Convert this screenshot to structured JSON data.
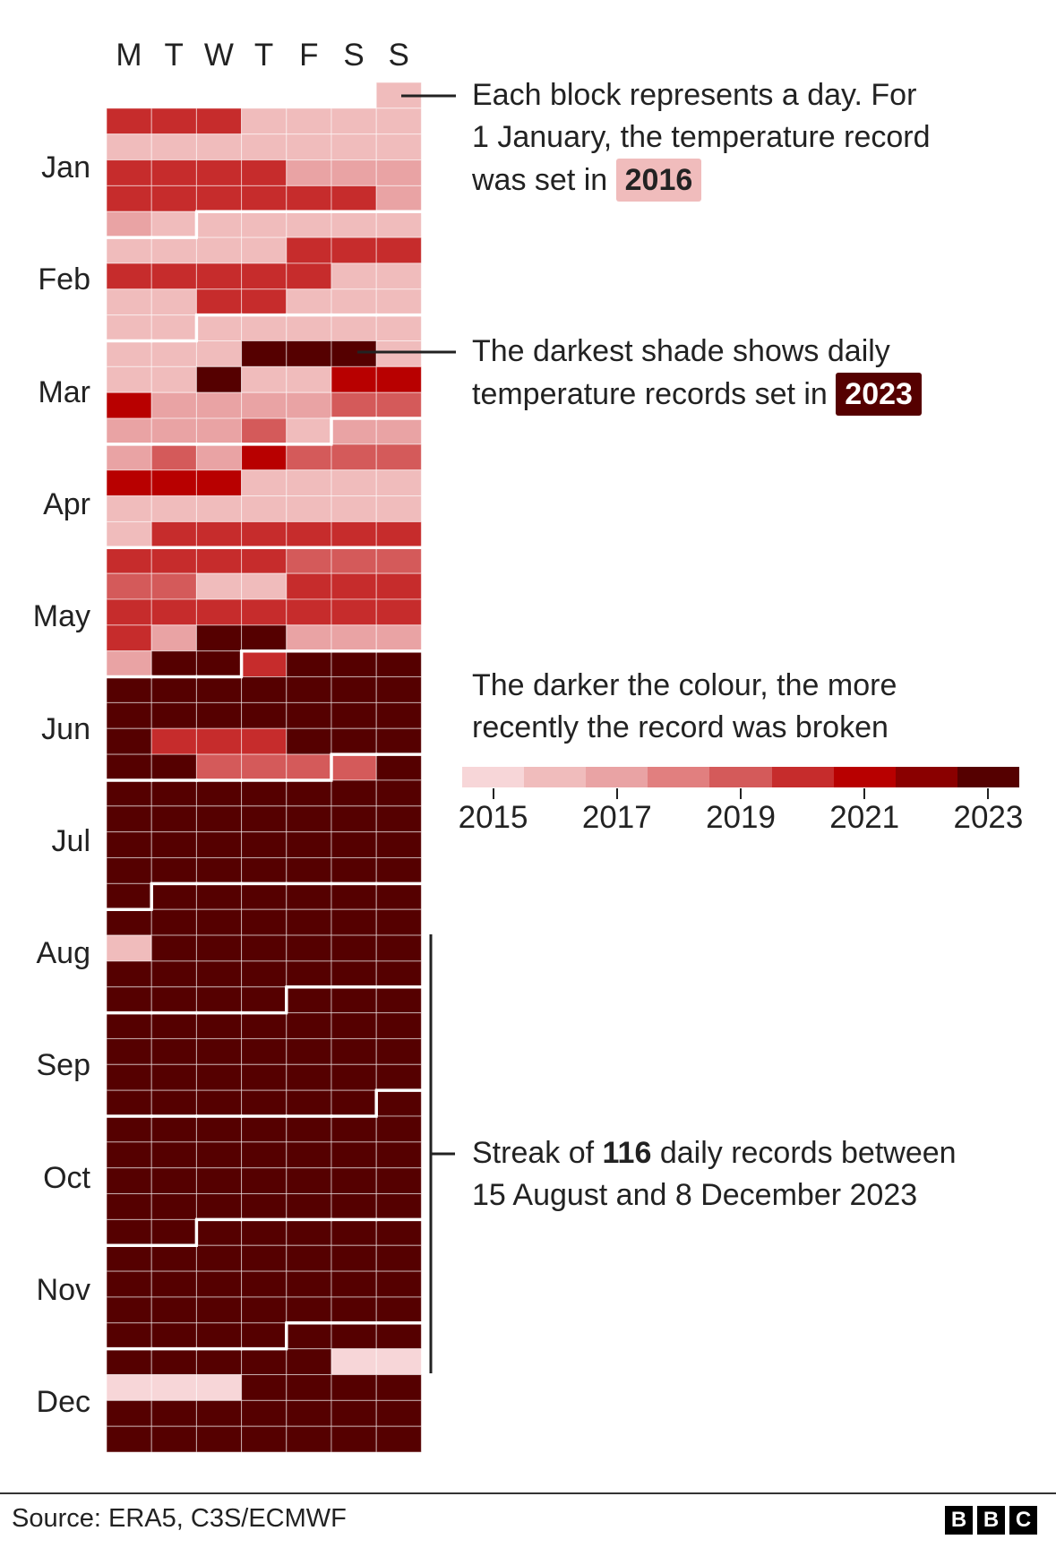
{
  "chart_data": {
    "type": "heatmap",
    "year": 2023,
    "day_headers": [
      "M",
      "T",
      "W",
      "T",
      "F",
      "S",
      "S"
    ],
    "months": [
      "Jan",
      "Feb",
      "Mar",
      "Apr",
      "May",
      "Jun",
      "Jul",
      "Aug",
      "Sep",
      "Oct",
      "Nov",
      "Dec"
    ],
    "legend": {
      "years": [
        2015,
        2016,
        2017,
        2018,
        2019,
        2020,
        2021,
        2022,
        2023
      ],
      "colors": [
        "#f7d6d8",
        "#f0bcbc",
        "#e9a3a4",
        "#e17f7f",
        "#d45a5a",
        "#c62c2c",
        "#b80000",
        "#8a0000",
        "#550000"
      ],
      "tick_labels": [
        "2015",
        "2017",
        "2019",
        "2021",
        "2023"
      ]
    },
    "record_years": [
      [
        2016,
        2020,
        2020,
        2020,
        2016,
        2016,
        2016,
        2016,
        2016,
        2016,
        2016,
        2016,
        2016,
        2016,
        2016,
        2020,
        2020,
        2020,
        2020,
        2017,
        2017,
        2017,
        2020,
        2020,
        2020,
        2020,
        2020,
        2020,
        2017,
        2017,
        2016
      ],
      [
        2016,
        2016,
        2016,
        2016,
        2016,
        2016,
        2016,
        2016,
        2016,
        2020,
        2020,
        2020,
        2020,
        2020,
        2020,
        2020,
        2020,
        2016,
        2016,
        2016,
        2016,
        2020,
        2020,
        2016,
        2016,
        2016,
        2016,
        2016
      ],
      [
        2016,
        2016,
        2016,
        2016,
        2016,
        2016,
        2016,
        2016,
        2023,
        2023,
        2023,
        2016,
        2016,
        2016,
        2023,
        2016,
        2016,
        2021,
        2021,
        2021,
        2017,
        2017,
        2017,
        2017,
        2019,
        2019,
        2017,
        2017,
        2017,
        2019,
        2016
      ],
      [
        2017,
        2017,
        2017,
        2019,
        2017,
        2021,
        2019,
        2019,
        2019,
        2021,
        2021,
        2021,
        2016,
        2016,
        2016,
        2016,
        2016,
        2016,
        2016,
        2016,
        2016,
        2016,
        2016,
        2016,
        2020,
        2020,
        2020,
        2020,
        2020,
        2020
      ],
      [
        2020,
        2020,
        2020,
        2020,
        2019,
        2019,
        2019,
        2019,
        2019,
        2016,
        2016,
        2020,
        2020,
        2020,
        2020,
        2020,
        2020,
        2020,
        2020,
        2020,
        2020,
        2020,
        2017,
        2023,
        2023,
        2017,
        2017,
        2017,
        2017,
        2023,
        2023
      ],
      [
        2020,
        2023,
        2023,
        2023,
        2023,
        2023,
        2023,
        2023,
        2023,
        2023,
        2023,
        2023,
        2023,
        2023,
        2023,
        2023,
        2023,
        2023,
        2023,
        2020,
        2020,
        2020,
        2023,
        2023,
        2023,
        2023,
        2023,
        2019,
        2019,
        2019
      ],
      [
        2019,
        2023,
        2023,
        2023,
        2023,
        2023,
        2023,
        2023,
        2023,
        2023,
        2023,
        2023,
        2023,
        2023,
        2023,
        2023,
        2023,
        2023,
        2023,
        2023,
        2023,
        2023,
        2023,
        2023,
        2023,
        2023,
        2023,
        2023,
        2023,
        2023,
        2023
      ],
      [
        2023,
        2023,
        2023,
        2023,
        2023,
        2023,
        2023,
        2023,
        2023,
        2023,
        2023,
        2023,
        2023,
        2016,
        2023,
        2023,
        2023,
        2023,
        2023,
        2023,
        2023,
        2023,
        2023,
        2023,
        2023,
        2023,
        2023,
        2023,
        2023,
        2023,
        2023
      ],
      [
        2023,
        2023,
        2023,
        2023,
        2023,
        2023,
        2023,
        2023,
        2023,
        2023,
        2023,
        2023,
        2023,
        2023,
        2023,
        2023,
        2023,
        2023,
        2023,
        2023,
        2023,
        2023,
        2023,
        2023,
        2023,
        2023,
        2023,
        2023,
        2023,
        2023
      ],
      [
        2023,
        2023,
        2023,
        2023,
        2023,
        2023,
        2023,
        2023,
        2023,
        2023,
        2023,
        2023,
        2023,
        2023,
        2023,
        2023,
        2023,
        2023,
        2023,
        2023,
        2023,
        2023,
        2023,
        2023,
        2023,
        2023,
        2023,
        2023,
        2023,
        2023,
        2023
      ],
      [
        2023,
        2023,
        2023,
        2023,
        2023,
        2023,
        2023,
        2023,
        2023,
        2023,
        2023,
        2023,
        2023,
        2023,
        2023,
        2023,
        2023,
        2023,
        2023,
        2023,
        2023,
        2023,
        2023,
        2023,
        2023,
        2023,
        2023,
        2023,
        2023,
        2023
      ],
      [
        2023,
        2023,
        2023,
        2023,
        2023,
        2023,
        2023,
        2023,
        2015,
        2015,
        2015,
        2015,
        2015,
        2023,
        2023,
        2023,
        2023,
        2023,
        2023,
        2023,
        2023,
        2023,
        2023,
        2023,
        2023,
        2023,
        2023,
        2023,
        2023,
        2023,
        2023
      ]
    ]
  },
  "annotations": {
    "block": {
      "line1": "Each block represents a day. For",
      "line2": "1 January, the temperature record",
      "line3": "was set in",
      "highlight": "2016"
    },
    "darkest": {
      "line1": "The darkest shade shows daily",
      "line2": "temperature records set in",
      "highlight": "2023"
    },
    "darker": {
      "line1": "The darker the colour, the more",
      "line2": "recently the record was broken"
    },
    "streak": {
      "pre": "Streak of ",
      "bold": "116",
      "post": " daily records between",
      "line2": "15 August and 8 December 2023"
    }
  },
  "footer": {
    "source": "Source: ERA5, C3S/ECMWF",
    "logo": [
      "B",
      "B",
      "C"
    ]
  }
}
